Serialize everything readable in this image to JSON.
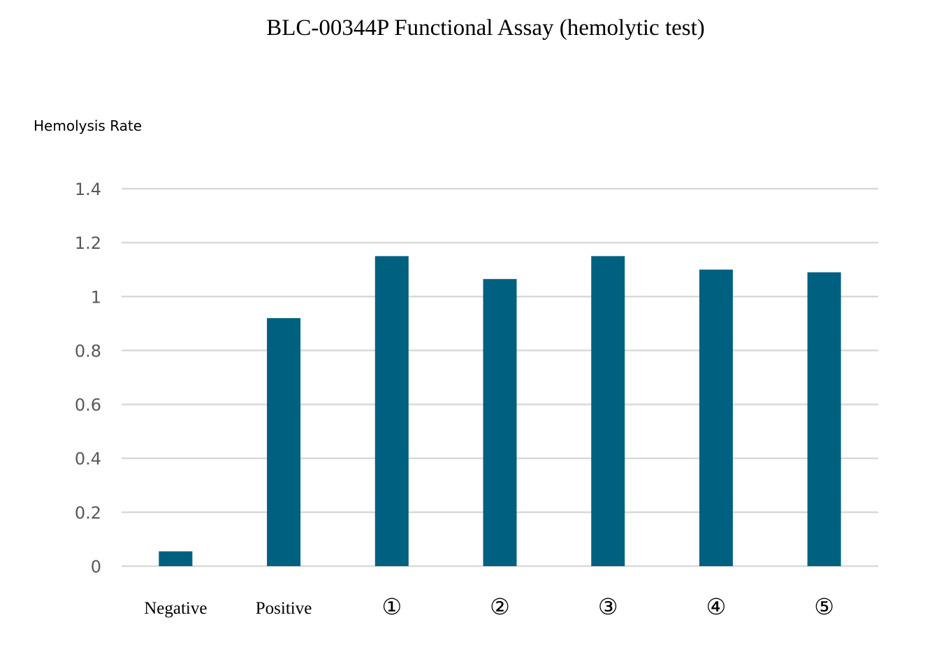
{
  "chart_data": {
    "type": "bar",
    "title": "BLC-00344P Functional Assay (hemolytic test)",
    "ylabel": "Hemolysis Rate",
    "xlabel": "",
    "categories": [
      "Negative",
      "Positive",
      "①",
      "②",
      "③",
      "④",
      "⑤"
    ],
    "values": [
      0.055,
      0.92,
      1.15,
      1.065,
      1.15,
      1.1,
      1.09
    ],
    "ylim": [
      0,
      1.4
    ],
    "yticks": [
      0,
      0.2,
      0.4,
      0.6,
      0.8,
      1,
      1.2,
      1.4
    ],
    "ytick_labels": [
      "0",
      "0.2",
      "0.4",
      "0.6",
      "0.8",
      "1",
      "1.2",
      "1.4"
    ],
    "grid": true,
    "legend": "none",
    "bar_color": "#00607F",
    "grid_color": "#D9D9D9"
  }
}
